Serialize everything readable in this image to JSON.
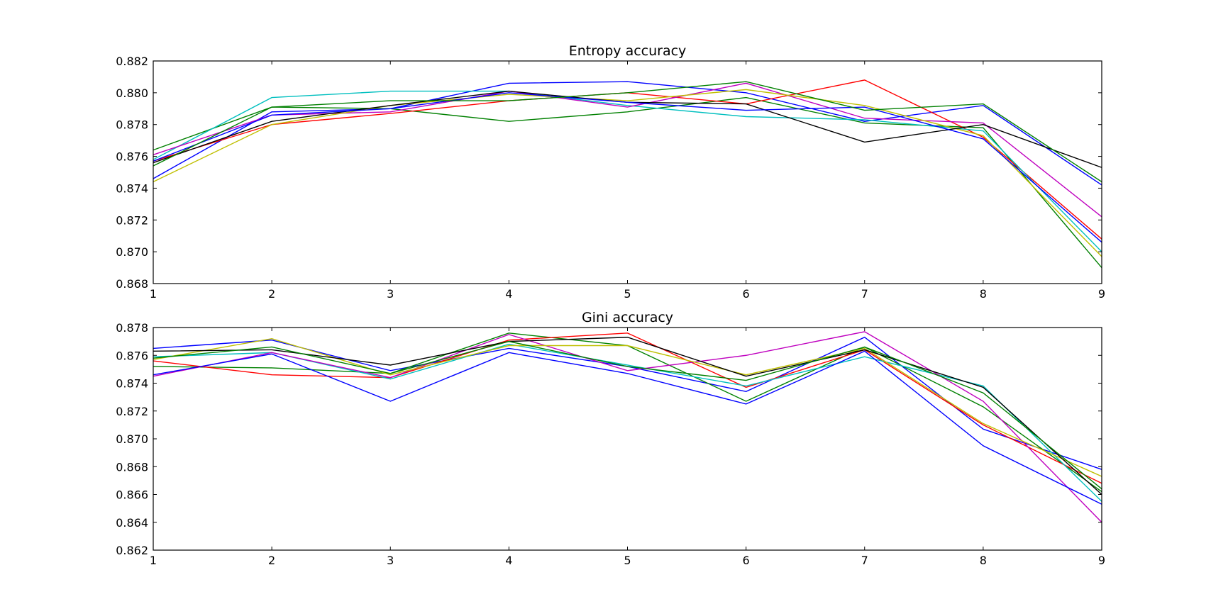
{
  "chart_data": [
    {
      "type": "line",
      "title": "Entropy accuracy",
      "xlabel": "",
      "ylabel": "",
      "x": [
        1,
        2,
        3,
        4,
        5,
        6,
        7,
        8,
        9
      ],
      "xlim": [
        1,
        9
      ],
      "ylim": [
        0.868,
        0.882
      ],
      "xticks": [
        "1",
        "2",
        "3",
        "4",
        "5",
        "6",
        "7",
        "8",
        "9"
      ],
      "yticks": [
        "0.868",
        "0.870",
        "0.872",
        "0.874",
        "0.876",
        "0.878",
        "0.880",
        "0.882"
      ],
      "grid": false,
      "series": [
        {
          "color": "#0000ff",
          "values": [
            0.8746,
            0.8788,
            0.879,
            0.8806,
            0.8807,
            0.88,
            0.8782,
            0.8792,
            0.8742
          ]
        },
        {
          "color": "#008000",
          "values": [
            0.8764,
            0.8791,
            0.879,
            0.8782,
            0.8788,
            0.8797,
            0.8781,
            0.8778,
            0.869
          ]
        },
        {
          "color": "#ff0000",
          "values": [
            0.8757,
            0.878,
            0.8787,
            0.8795,
            0.88,
            0.8793,
            0.8808,
            0.8772,
            0.8708
          ]
        },
        {
          "color": "#00bfbf",
          "values": [
            0.8758,
            0.8797,
            0.8801,
            0.8801,
            0.8792,
            0.8785,
            0.8783,
            0.8776,
            0.87
          ]
        },
        {
          "color": "#bf00bf",
          "values": [
            0.8761,
            0.8786,
            0.8788,
            0.8801,
            0.8791,
            0.8806,
            0.8784,
            0.8781,
            0.8722
          ]
        },
        {
          "color": "#bfbf00",
          "values": [
            0.8744,
            0.878,
            0.8792,
            0.8799,
            0.8795,
            0.8802,
            0.8792,
            0.8773,
            0.8697
          ]
        },
        {
          "color": "#000000",
          "values": [
            0.8756,
            0.8782,
            0.8792,
            0.8801,
            0.8794,
            0.8793,
            0.8769,
            0.878,
            0.8753
          ]
        },
        {
          "color": "#0000ff",
          "values": [
            0.8757,
            0.8786,
            0.879,
            0.88,
            0.8794,
            0.8789,
            0.8791,
            0.8771,
            0.8706
          ]
        },
        {
          "color": "#008000",
          "values": [
            0.8754,
            0.8791,
            0.8795,
            0.8795,
            0.88,
            0.8807,
            0.8789,
            0.8793,
            0.8744
          ]
        }
      ]
    },
    {
      "type": "line",
      "title": "Gini accuracy",
      "xlabel": "",
      "ylabel": "",
      "x": [
        1,
        2,
        3,
        4,
        5,
        6,
        7,
        8,
        9
      ],
      "xlim": [
        1,
        9
      ],
      "ylim": [
        0.862,
        0.878
      ],
      "xticks": [
        "1",
        "2",
        "3",
        "4",
        "5",
        "6",
        "7",
        "8",
        "9"
      ],
      "yticks": [
        "0.862",
        "0.864",
        "0.866",
        "0.868",
        "0.870",
        "0.872",
        "0.874",
        "0.876",
        "0.878"
      ],
      "grid": false,
      "series": [
        {
          "color": "#0000ff",
          "values": [
            0.8765,
            0.8771,
            0.8749,
            0.8765,
            0.8752,
            0.8734,
            0.8773,
            0.8707,
            0.8678
          ]
        },
        {
          "color": "#008000",
          "values": [
            0.8752,
            0.8751,
            0.8747,
            0.8776,
            0.8767,
            0.8727,
            0.8766,
            0.8723,
            0.8662
          ]
        },
        {
          "color": "#ff0000",
          "values": [
            0.8756,
            0.8746,
            0.8744,
            0.8771,
            0.8776,
            0.8737,
            0.8764,
            0.871,
            0.8668
          ]
        },
        {
          "color": "#00bfbf",
          "values": [
            0.8759,
            0.8762,
            0.8743,
            0.8768,
            0.8753,
            0.8738,
            0.8759,
            0.8738,
            0.8655
          ]
        },
        {
          "color": "#bf00bf",
          "values": [
            0.8745,
            0.8762,
            0.8744,
            0.8775,
            0.8749,
            0.876,
            0.8777,
            0.8727,
            0.864
          ]
        },
        {
          "color": "#bfbf00",
          "values": [
            0.8757,
            0.8772,
            0.8746,
            0.8767,
            0.8767,
            0.8746,
            0.8765,
            0.8711,
            0.8673
          ]
        },
        {
          "color": "#000000",
          "values": [
            0.8763,
            0.8764,
            0.8753,
            0.877,
            0.8773,
            0.8745,
            0.8764,
            0.8737,
            0.866
          ]
        },
        {
          "color": "#0000ff",
          "values": [
            0.8746,
            0.8761,
            0.8727,
            0.8762,
            0.8747,
            0.8725,
            0.8763,
            0.8695,
            0.8653
          ]
        },
        {
          "color": "#008000",
          "values": [
            0.8758,
            0.8766,
            0.8747,
            0.877,
            0.8752,
            0.8742,
            0.8766,
            0.8733,
            0.8664
          ]
        }
      ]
    }
  ]
}
